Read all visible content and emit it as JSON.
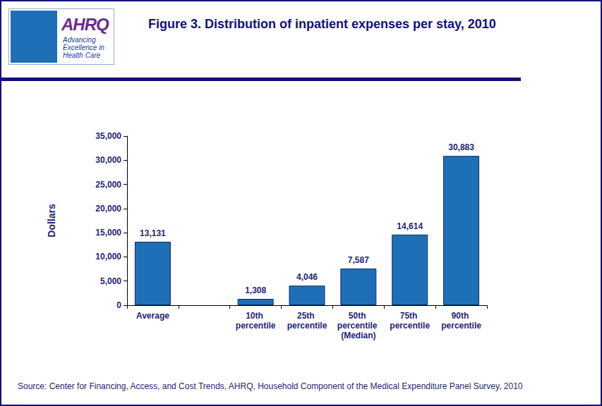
{
  "chart_data": {
    "type": "bar",
    "title": "Figure 3. Distribution of inpatient expenses per stay, 2010",
    "y_label": "Dollars",
    "source": "Source: Center for Financing, Access, and Cost Trends, AHRQ, Household Component of the Medical Expenditure Panel Survey, 2010",
    "logo": {
      "name": "AHRQ",
      "tagline": "Advancing Excellence in Health Care"
    },
    "categories": [
      "Average",
      null,
      "10th percentile",
      "25th percentile",
      "50th percentile (Median)",
      "75th percentile",
      "90th percentile"
    ],
    "values": [
      13131,
      null,
      1308,
      4046,
      7587,
      14614,
      30883
    ],
    "value_labels": [
      "13,131",
      null,
      "1,308",
      "4,046",
      "7,587",
      "14,614",
      "30,883"
    ],
    "color": "#1f6fb8",
    "ylim": [
      0,
      35000
    ],
    "yticks": [
      0,
      {
        "value": 5000,
        "label": "5,000"
      },
      {
        "value": 10000,
        "label": "10,000"
      },
      {
        "value": 15000,
        "label": "15,000"
      },
      {
        "value": 20000,
        "label": "20,000"
      },
      {
        "value": 25000,
        "label": "25,000"
      },
      {
        "value": 30000,
        "label": "30,000"
      },
      {
        "value": 35000,
        "label": "35,000"
      }
    ],
    "grid": false,
    "data_labels": true
  }
}
